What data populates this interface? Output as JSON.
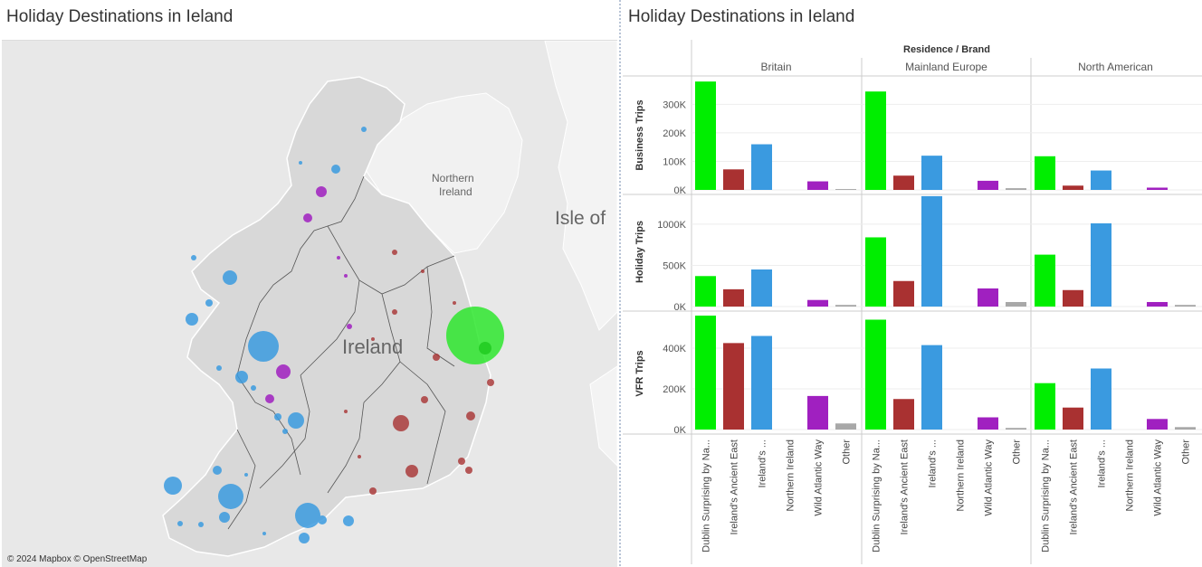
{
  "map_panel": {
    "title": "Holiday Destinations in Ieland",
    "labels": {
      "country": "Ireland",
      "region": "Northern Ireland",
      "sea": "Isle of"
    },
    "attribution": "© 2024 Mapbox © OpenStreetMap",
    "colors": {
      "Dublin": "#2ee62e",
      "Ancient East": "#a83232",
      "Hidden Heartlands": "#3b9be0",
      "Wild Atlantic Way": "#a020c0"
    }
  },
  "chart_panel": {
    "title": "Holiday Destinations in Ieland"
  },
  "chart_data": {
    "type": "bar",
    "header": "Residence / Brand",
    "columns": [
      "Britain",
      "Mainland Europe",
      "North American"
    ],
    "categories": [
      "Dublin Surprising by Na...",
      "Ireland's Ancient East",
      "Ireland's ...",
      "Northern Ireland",
      "Wild Atlantic Way",
      "Other"
    ],
    "colors": [
      "#00ee00",
      "#a93131",
      "#3a9ae0",
      "#a020c0",
      "#a020c0",
      "#a8a8a8"
    ],
    "rows": [
      {
        "name": "Business Trips",
        "ylim": [
          0,
          390000
        ],
        "ticks": [
          {
            "v": 0,
            "label": "0K"
          },
          {
            "v": 100000,
            "label": "100K"
          },
          {
            "v": 200000,
            "label": "200K"
          },
          {
            "v": 300000,
            "label": "300K"
          }
        ],
        "values": [
          [
            380000,
            72000,
            160000,
            0,
            30000,
            3000
          ],
          [
            345000,
            50000,
            120000,
            0,
            32000,
            6000
          ],
          [
            118000,
            15000,
            68000,
            0,
            8000,
            0
          ]
        ]
      },
      {
        "name": "Holiday Trips",
        "ylim": [
          0,
          1350000
        ],
        "ticks": [
          {
            "v": 0,
            "label": "0K"
          },
          {
            "v": 500000,
            "label": "500K"
          },
          {
            "v": 1000000,
            "label": "1000K"
          }
        ],
        "values": [
          [
            370000,
            210000,
            450000,
            0,
            80000,
            20000
          ],
          [
            840000,
            310000,
            1340000,
            0,
            220000,
            55000
          ],
          [
            630000,
            200000,
            1010000,
            0,
            55000,
            20000
          ]
        ]
      },
      {
        "name": "VFR Trips",
        "ylim": [
          0,
          560000
        ],
        "ticks": [
          {
            "v": 0,
            "label": "0K"
          },
          {
            "v": 200000,
            "label": "200K"
          },
          {
            "v": 400000,
            "label": "400K"
          }
        ],
        "values": [
          [
            560000,
            425000,
            460000,
            0,
            165000,
            30000
          ],
          [
            540000,
            150000,
            415000,
            0,
            60000,
            8000
          ],
          [
            228000,
            108000,
            300000,
            0,
            52000,
            12000
          ]
        ]
      }
    ]
  }
}
